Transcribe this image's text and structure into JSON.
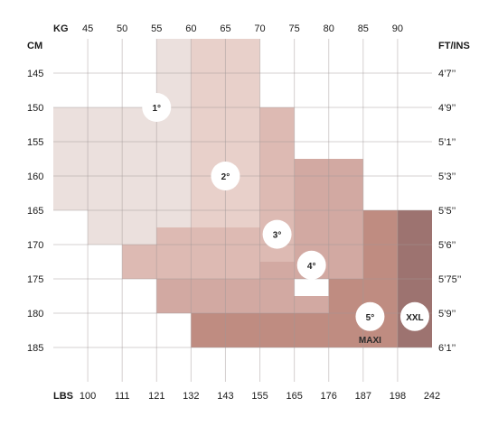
{
  "chart_data": {
    "type": "heatmap",
    "axis_titles": {
      "top": "KG",
      "bottom": "LBS",
      "left": "CM",
      "right": "FT/INS"
    },
    "kg_ticks": [
      "45",
      "50",
      "55",
      "60",
      "65",
      "70",
      "75",
      "80",
      "85",
      "90"
    ],
    "lbs_ticks": [
      "100",
      "111",
      "121",
      "132",
      "143",
      "155",
      "165",
      "176",
      "187",
      "198",
      "242"
    ],
    "cm_ticks": [
      "145",
      "150",
      "155",
      "160",
      "165",
      "170",
      "175",
      "180",
      "185"
    ],
    "ftin_ticks": [
      "4’7’’",
      "4’9’’",
      "5’1’’",
      "5’3’’",
      "5’5’’",
      "5’6’’",
      "5’75’’",
      "5’9’’",
      "6’1’’"
    ],
    "kg_range": [
      40,
      95
    ],
    "cm_range": [
      140,
      190
    ],
    "grid": true,
    "sizes": [
      {
        "label": "1°",
        "color": "#ebe0dd",
        "label_at": {
          "kg": 55,
          "cm": 150
        },
        "regions": [
          {
            "kg": [
              55,
              60
            ],
            "cm": [
              140,
              150
            ]
          },
          {
            "kg": [
              40,
              60
            ],
            "cm": [
              150,
              165
            ]
          },
          {
            "kg": [
              45,
              60
            ],
            "cm": [
              165,
              170
            ]
          }
        ]
      },
      {
        "label": "2°",
        "color": "#e8d0ca",
        "label_at": {
          "kg": 65,
          "cm": 160
        },
        "regions": [
          {
            "kg": [
              60,
              70
            ],
            "cm": [
              140,
              167.5
            ]
          }
        ]
      },
      {
        "label": "3°",
        "color": "#ddbab3",
        "label_at": {
          "kg": 72.5,
          "cm": 168.5
        },
        "regions": [
          {
            "kg": [
              70,
              75
            ],
            "cm": [
              150,
              167.5
            ]
          },
          {
            "kg": [
              55,
              75
            ],
            "cm": [
              167.5,
              170
            ]
          },
          {
            "kg": [
              50,
              75
            ],
            "cm": [
              170,
              175
            ]
          }
        ]
      },
      {
        "label": "4°",
        "color": "#d2a9a2",
        "label_at": {
          "kg": 77.5,
          "cm": 173
        },
        "regions": [
          {
            "kg": [
              75,
              85
            ],
            "cm": [
              157.5,
              175
            ]
          },
          {
            "kg": [
              55,
              70
            ],
            "cm": [
              175,
              180
            ]
          },
          {
            "kg": [
              70,
              75
            ],
            "cm": [
              172.5,
              177.5
            ]
          },
          {
            "kg": [
              70,
              80
            ],
            "cm": [
              177.5,
              180
            ]
          }
        ]
      },
      {
        "label": "5°",
        "sublabel": "MAXI",
        "color": "#bf8c81",
        "label_at": {
          "kg": 86,
          "cm": 180.5
        },
        "regions": [
          {
            "kg": [
              85,
              90
            ],
            "cm": [
              165,
              175
            ]
          },
          {
            "kg": [
              80,
              90
            ],
            "cm": [
              175,
              180
            ]
          },
          {
            "kg": [
              60,
              90
            ],
            "cm": [
              180,
              185
            ]
          }
        ]
      },
      {
        "label": "XXL",
        "color": "#9d7370",
        "label_at": {
          "kg": 92.5,
          "cm": 180.5
        },
        "regions": [
          {
            "kg": [
              90,
              95
            ],
            "cm": [
              165,
              185
            ]
          }
        ]
      }
    ]
  }
}
